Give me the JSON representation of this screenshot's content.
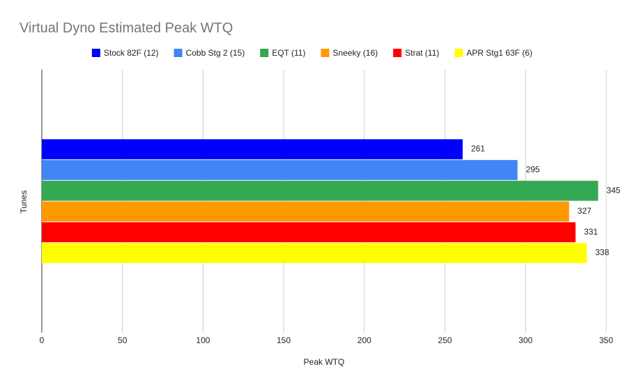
{
  "chart_data": {
    "type": "bar",
    "orientation": "horizontal",
    "title": "Virtual Dyno Estimated Peak WTQ",
    "x_label": "Peak WTQ",
    "y_label": "Tunes",
    "categories": [
      null
    ],
    "series": [
      {
        "name": "Stock 82F (12)",
        "color": "#0000ff",
        "values": [
          261
        ]
      },
      {
        "name": "Cobb Stg 2 (15)",
        "color": "#4285f4",
        "values": [
          295
        ]
      },
      {
        "name": "EQT (11)",
        "color": "#34a853",
        "values": [
          345
        ]
      },
      {
        "name": "Sneeky (16)",
        "color": "#ff9900",
        "values": [
          327
        ]
      },
      {
        "name": "Strat (11)",
        "color": "#ff0000",
        "values": [
          331
        ]
      },
      {
        "name": "APR Stg1 63F (6)",
        "color": "#ffff00",
        "values": [
          338
        ]
      }
    ],
    "xlim": [
      0,
      350
    ],
    "xticks": [
      0,
      50,
      100,
      150,
      200,
      250,
      300,
      350
    ],
    "grid": true,
    "legend": "top"
  }
}
